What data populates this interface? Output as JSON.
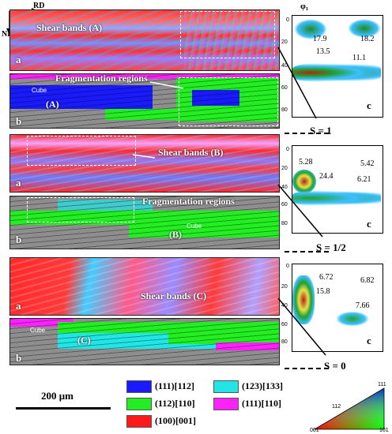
{
  "axes": {
    "rd": "RD",
    "nd": "ND",
    "phi": "φ₁"
  },
  "panels": {
    "p1": {
      "a_label": "a",
      "b_label": "b",
      "shear": "Shear bands (A)",
      "frag": "Fragmentation regions",
      "cube": "Cube",
      "cube_tag": "(A)",
      "odf_label": "c",
      "s": "S = 1",
      "odf_vals": [
        "17.9",
        "18.2",
        "13.5",
        "11.1"
      ],
      "ticks": [
        "0",
        "20",
        "40",
        "60",
        "80"
      ]
    },
    "p2": {
      "a_label": "a",
      "b_label": "b",
      "shear": "Shear bands (B)",
      "frag": "Fragmentation regions",
      "cube": "Cube",
      "cube_tag": "(B)",
      "odf_label": "c",
      "s": "S = 1/2",
      "odf_vals": [
        "5.28",
        "5.42",
        "24.4",
        "6.21"
      ],
      "ticks": [
        "0",
        "20",
        "40",
        "60",
        "80"
      ]
    },
    "p3": {
      "a_label": "a",
      "b_label": "b",
      "shear": "Shear bands (C)",
      "cube": "Cube",
      "cube_tag": "(C)",
      "odf_label": "c",
      "s": "S = 0",
      "odf_vals": [
        "6.72",
        "6.82",
        "15.8",
        "7.66"
      ],
      "ticks": [
        "0",
        "20",
        "40",
        "60",
        "80"
      ]
    }
  },
  "scale": "200 μm",
  "legend": [
    {
      "label": "(111)[112]",
      "color": "#1a1aff"
    },
    {
      "label": "(123)[133]",
      "color": "#22e5e5"
    },
    {
      "label": "(112)[110]",
      "color": "#22ee22"
    },
    {
      "label": "(111)[110]",
      "color": "#ff22ff"
    },
    {
      "label": "(100)[001]",
      "color": "#ff1a1a"
    }
  ],
  "ipf": {
    "top": "111",
    "left": "112",
    "bl": "001",
    "br": "101"
  }
}
